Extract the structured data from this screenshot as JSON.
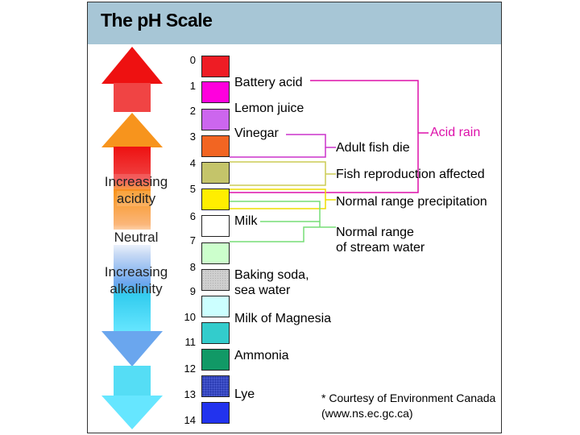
{
  "title": "The pH Scale",
  "side_labels": {
    "acidity": "Increasing\nacidity",
    "neutral": "Neutral",
    "alkalinity": "Increasing\nalkalinity"
  },
  "scale": [
    {
      "ph": "0",
      "color": "#ee1c24"
    },
    {
      "ph": "1",
      "color": "#ff00dd"
    },
    {
      "ph": "2",
      "color": "#cc66ee"
    },
    {
      "ph": "3",
      "color": "#f26522"
    },
    {
      "ph": "4",
      "color": "#c4c46a"
    },
    {
      "ph": "5",
      "color": "#ffee00"
    },
    {
      "ph": "6",
      "color": "#ffffff"
    },
    {
      "ph": "7",
      "color": "#ccffcc"
    },
    {
      "ph": "8",
      "color": "#cfcfcf"
    },
    {
      "ph": "9",
      "color": "#ccffff"
    },
    {
      "ph": "10",
      "color": "#33cccc"
    },
    {
      "ph": "11",
      "color": "#119966"
    },
    {
      "ph": "12",
      "color": "#4455cc"
    },
    {
      "ph": "13",
      "color": "#2233ee"
    },
    {
      "ph": "14",
      "color": ""
    }
  ],
  "substances": {
    "battery_acid": "Battery acid",
    "lemon_juice": "Lemon juice",
    "vinegar": "Vinegar",
    "milk": "Milk",
    "baking_soda": "Baking soda,\nsea water",
    "milk_of_magnesia": "Milk of Magnesia",
    "ammonia": "Ammonia",
    "lye": "Lye"
  },
  "effects": {
    "adult_fish_die": "Adult fish die",
    "fish_reproduction": "Fish reproduction affected",
    "normal_precipitation": "Normal range precipitation",
    "normal_stream": "Normal range\nof stream water",
    "acid_rain": "Acid rain"
  },
  "credit": "* Courtesy of Environment Canada\n(www.ns.ec.gc.ca)",
  "colors": {
    "header_bg": "#a7c6d6",
    "acid_rain": "#dd11aa",
    "vinegar_bracket": "#cc33cc",
    "fish_bracket": "#cccc55",
    "precip_bracket": "#eedd00",
    "stream_bracket": "#77dd77"
  }
}
